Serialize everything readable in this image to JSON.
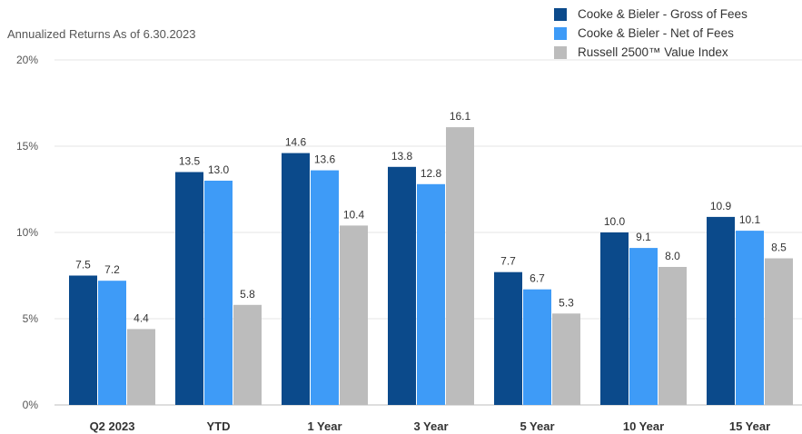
{
  "chart_data": {
    "type": "bar",
    "title": "",
    "subtitle": "Annualized Returns As of 6.30.2023",
    "xlabel": "",
    "ylabel": "",
    "ylim": [
      0,
      20
    ],
    "yticks": [
      0,
      5,
      10,
      15,
      20
    ],
    "ytick_labels": [
      "0%",
      "5%",
      "10%",
      "15%",
      "20%"
    ],
    "grid": true,
    "legend_position": "top-right",
    "categories": [
      "Q2 2023",
      "YTD",
      "1 Year",
      "3 Year",
      "5 Year",
      "10 Year",
      "15 Year"
    ],
    "series": [
      {
        "name": "Cooke & Bieler - Gross of Fees",
        "color": "#0b4a8b",
        "values": [
          7.5,
          13.5,
          14.6,
          13.8,
          7.7,
          10.0,
          10.9
        ]
      },
      {
        "name": "Cooke & Bieler - Net of Fees",
        "color": "#3e9bf7",
        "values": [
          7.2,
          13.0,
          13.6,
          12.8,
          6.7,
          9.1,
          10.1
        ]
      },
      {
        "name": "Russell 2500™ Value Index",
        "color": "#bcbcbc",
        "values": [
          4.4,
          5.8,
          10.4,
          16.1,
          5.3,
          8.0,
          8.5
        ]
      }
    ],
    "data_labels": [
      [
        "7.5",
        "13.5",
        "14.6",
        "13.8",
        "7.7",
        "10.0",
        "10.9"
      ],
      [
        "7.2",
        "13.0",
        "13.6",
        "12.8",
        "6.7",
        "9.1",
        "10.1"
      ],
      [
        "4.4",
        "5.8",
        "10.4",
        "16.1",
        "5.3",
        "8.0",
        "8.5"
      ]
    ]
  }
}
